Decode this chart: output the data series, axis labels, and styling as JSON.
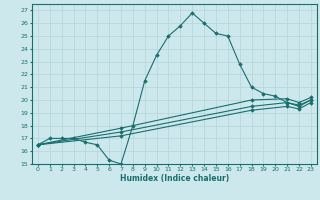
{
  "xlabel": "Humidex (Indice chaleur)",
  "bg_color": "#cce8ec",
  "grid_color": "#aacccc",
  "line_color": "#1a6e6e",
  "xlim": [
    -0.5,
    23.5
  ],
  "ylim": [
    15,
    27.5
  ],
  "xticks": [
    0,
    1,
    2,
    3,
    4,
    5,
    6,
    7,
    8,
    9,
    10,
    11,
    12,
    13,
    14,
    15,
    16,
    17,
    18,
    19,
    20,
    21,
    22,
    23
  ],
  "yticks": [
    15,
    16,
    17,
    18,
    19,
    20,
    21,
    22,
    23,
    24,
    25,
    26,
    27
  ],
  "lines": [
    {
      "x": [
        0,
        1,
        2,
        3,
        4,
        5,
        6,
        7,
        8,
        9,
        10,
        11,
        12,
        13,
        14,
        15,
        16,
        17,
        18,
        19,
        20,
        21,
        22,
        23
      ],
      "y": [
        16.5,
        17.0,
        17.0,
        17.0,
        16.7,
        16.5,
        15.3,
        15.0,
        18.0,
        21.5,
        23.5,
        25.0,
        25.8,
        26.8,
        26.0,
        25.2,
        25.0,
        22.8,
        21.0,
        20.5,
        20.3,
        19.8,
        19.5,
        20.0
      ]
    },
    {
      "x": [
        0,
        7,
        18,
        21,
        22,
        23
      ],
      "y": [
        16.5,
        17.8,
        20.0,
        20.1,
        19.8,
        20.2
      ]
    },
    {
      "x": [
        0,
        7,
        18,
        21,
        22,
        23
      ],
      "y": [
        16.5,
        17.5,
        19.5,
        19.8,
        19.6,
        20.0
      ]
    },
    {
      "x": [
        0,
        7,
        18,
        21,
        22,
        23
      ],
      "y": [
        16.5,
        17.2,
        19.2,
        19.5,
        19.3,
        19.8
      ]
    }
  ]
}
